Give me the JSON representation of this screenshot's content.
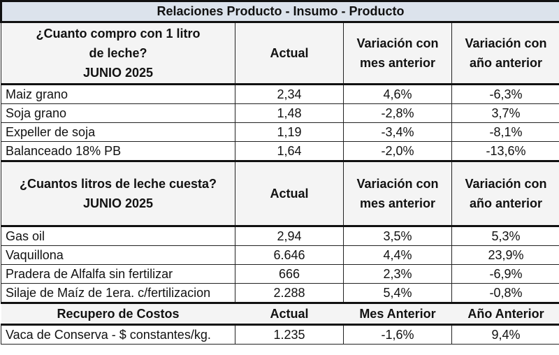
{
  "title": "Relaciones Producto - Insumo - Producto",
  "section1": {
    "question": "¿Cuanto compro con 1 litro de leche?",
    "period": "JUNIO 2025",
    "columns": [
      "Actual",
      "Variación con mes anterior",
      "Variación con año anterior"
    ],
    "rows": [
      [
        "Maiz grano",
        "2,34",
        "4,6%",
        "-6,3%"
      ],
      [
        "Soja grano",
        "1,48",
        "-2,8%",
        "3,7%"
      ],
      [
        "Expeller de soja",
        "1,19",
        "-3,4%",
        "-8,1%"
      ],
      [
        "Balanceado 18% PB",
        "1,64",
        "-2,0%",
        "-13,6%"
      ]
    ]
  },
  "section2": {
    "question": "¿Cuantos litros de leche cuesta?",
    "period": "JUNIO 2025",
    "columns": [
      "Actual",
      "Variación con mes anterior",
      "Variación con año anterior"
    ],
    "rows": [
      [
        "Gas oil",
        "2,94",
        "3,5%",
        "5,3%"
      ],
      [
        "Vaquillona",
        "6.646",
        "4,4%",
        "23,9%"
      ],
      [
        "Pradera de Alfalfa sin fertilizar",
        "666",
        "2,3%",
        "-6,9%"
      ],
      [
        "Silaje de Maíz de 1era. c/fertilizacion",
        "2.288",
        "5,4%",
        "-0,8%"
      ]
    ]
  },
  "section3": {
    "columns": [
      "Recupero de Costos",
      "Actual",
      "Mes Anterior",
      "Año Anterior"
    ],
    "rows": [
      [
        "Vaca de Conserva - $ constantes/kg.",
        "1.235",
        "-1,6%",
        "9,4%"
      ]
    ]
  }
}
